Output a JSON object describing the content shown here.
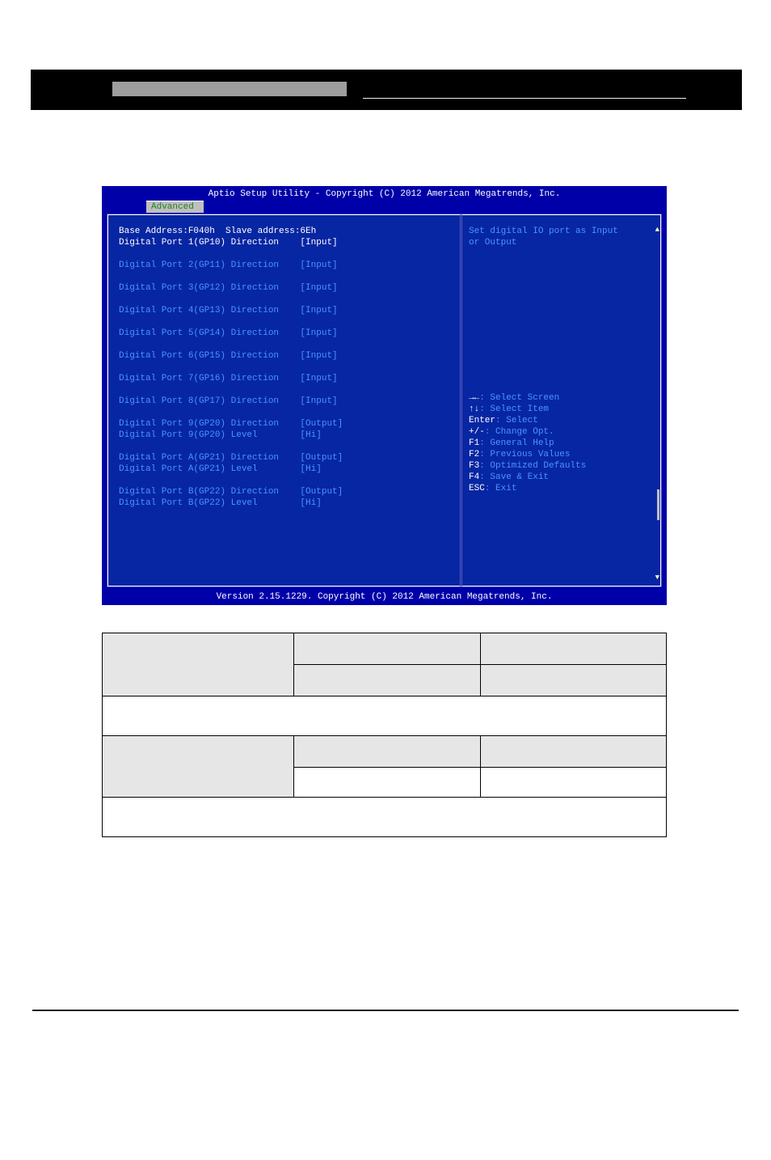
{
  "bios": {
    "title": "Aptio Setup Utility - Copyright (C) 2012 American Megatrends, Inc.",
    "tab": "Advanced",
    "footer": "Version 2.15.1229. Copyright (C) 2012 American Megatrends, Inc.",
    "header_line": "Base Address:F040h  Slave address:6Eh",
    "items": [
      {
        "label": "Digital Port 1(GP10) Direction",
        "value": "[Input]",
        "sel": true
      },
      {
        "blank": true
      },
      {
        "label": "Digital Port 2(GP11) Direction",
        "value": "[Input]"
      },
      {
        "blank": true
      },
      {
        "label": "Digital Port 3(GP12) Direction",
        "value": "[Input]"
      },
      {
        "blank": true
      },
      {
        "label": "Digital Port 4(GP13) Direction",
        "value": "[Input]"
      },
      {
        "blank": true
      },
      {
        "label": "Digital Port 5(GP14) Direction",
        "value": "[Input]"
      },
      {
        "blank": true
      },
      {
        "label": "Digital Port 6(GP15) Direction",
        "value": "[Input]"
      },
      {
        "blank": true
      },
      {
        "label": "Digital Port 7(GP16) Direction",
        "value": "[Input]"
      },
      {
        "blank": true
      },
      {
        "label": "Digital Port 8(GP17) Direction",
        "value": "[Input]"
      },
      {
        "blank": true
      },
      {
        "label": "Digital Port 9(GP20) Direction",
        "value": "[Output]"
      },
      {
        "label": "Digital Port 9(GP20) Level",
        "value": "[Hi]"
      },
      {
        "blank": true
      },
      {
        "label": "Digital Port A(GP21) Direction",
        "value": "[Output]"
      },
      {
        "label": "Digital Port A(GP21) Level",
        "value": "[Hi]"
      },
      {
        "blank": true
      },
      {
        "label": "Digital Port B(GP22) Direction",
        "value": "[Output]"
      },
      {
        "label": "Digital Port B(GP22) Level",
        "value": "[Hi]"
      }
    ],
    "help": "Set digital IO port as Input\nor Output",
    "keys": [
      {
        "k": "→←",
        "d": ": Select Screen"
      },
      {
        "k": "↑↓",
        "d": ": Select Item"
      },
      {
        "k": "Enter",
        "d": ": Select"
      },
      {
        "k": "+/-",
        "d": ": Change Opt."
      },
      {
        "k": "F1",
        "d": ": General Help"
      },
      {
        "k": "F2",
        "d": ": Previous Values"
      },
      {
        "k": "F3",
        "d": ": Optimized Defaults"
      },
      {
        "k": "F4",
        "d": ": Save & Exit"
      },
      {
        "k": "ESC",
        "d": ": Exit"
      }
    ]
  },
  "table": {
    "rows": [
      {
        "label": "",
        "opt1": "",
        "opt2": "",
        "desc": ""
      },
      {
        "label": "",
        "opt1": "",
        "opt2": "",
        "desc": ""
      }
    ]
  },
  "page_footer": "",
  "colors": {
    "bios_bg": "#0000a8",
    "bios_body": "#0726a3",
    "accent": "#4a94ff",
    "tab_bg": "#bfbfbf",
    "tab_fg": "#1e801e",
    "white": "#ffffff",
    "table_head": "#e6e6e6",
    "border": "#000000"
  }
}
